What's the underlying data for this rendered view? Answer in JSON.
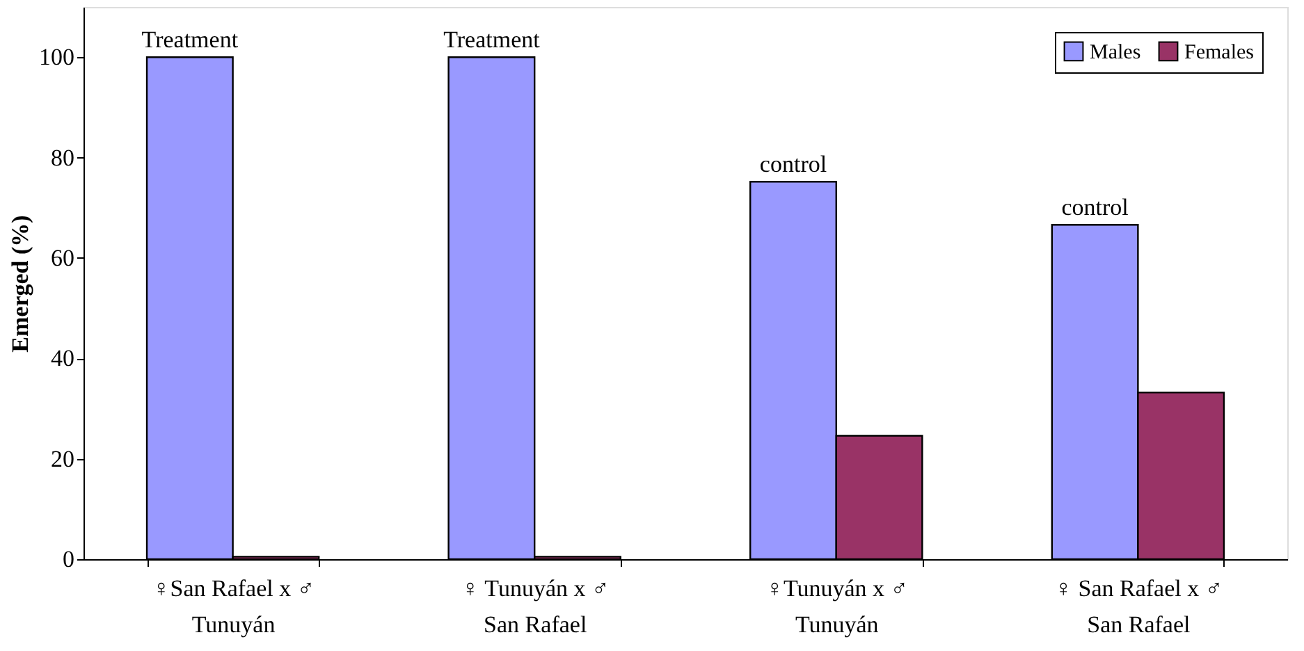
{
  "chart_data": {
    "type": "bar",
    "ylabel": "Emerged (%)",
    "categories": [
      "♀San Rafael x ♂\nTunuyán",
      "♀ Tunuyán x ♂\nSan Rafael",
      "♀Tunuyán x ♂\nTunuyán",
      "♀ San Rafael x ♂\nSan Rafael"
    ],
    "series": [
      {
        "name": "Males",
        "color": "#9999ff",
        "values": [
          100,
          100,
          75.2,
          66.6
        ]
      },
      {
        "name": "Females",
        "color": "#993366",
        "values": [
          0.5,
          0.5,
          24.6,
          33.2
        ]
      }
    ],
    "ylim": [
      0,
      110
    ],
    "yticks": [
      0,
      20,
      40,
      60,
      80,
      100
    ],
    "grid": false,
    "legend": "top right",
    "annotations": [
      {
        "text": "Treatment",
        "x": "♀San Rafael x ♂\nTunuyán",
        "y": 100
      },
      {
        "text": "Treatment",
        "x": "♀ Tunuyán x ♂\nSan Rafael",
        "y": 100
      },
      {
        "text": "control",
        "x": "♀Tunuyán x ♂\nTunuyán",
        "y": 75.2
      },
      {
        "text": "control",
        "x": "♀ San Rafael x ♂\nSan Rafael",
        "y": 66.6
      }
    ]
  }
}
